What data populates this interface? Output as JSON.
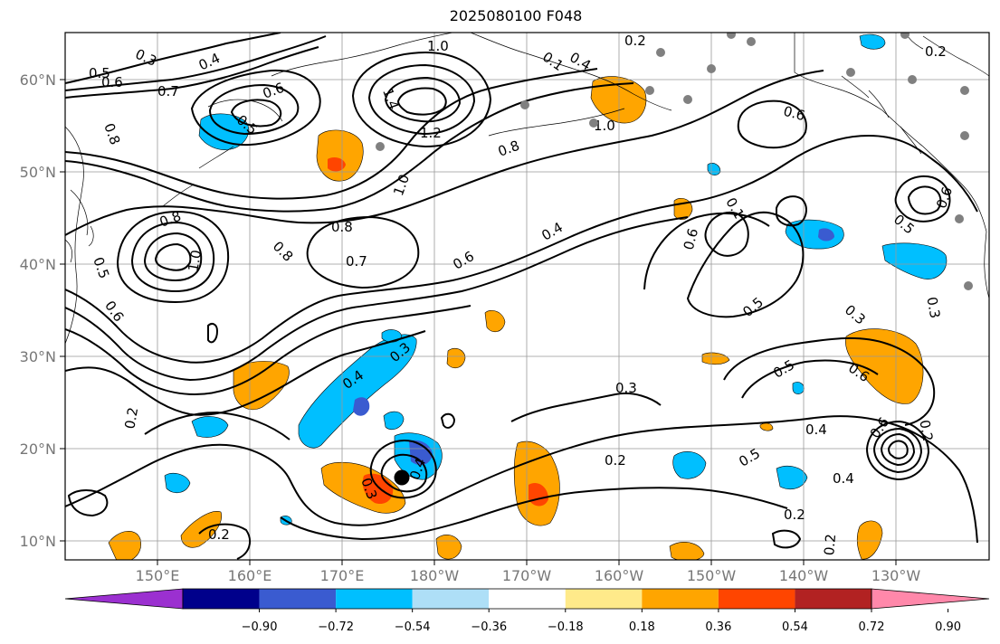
{
  "title": "2025080100 F048",
  "map": {
    "lat_labels": [
      "60°N",
      "50°N",
      "40°N",
      "30°N",
      "20°N",
      "10°N"
    ],
    "lon_labels": [
      "150°E",
      "160°E",
      "170°E",
      "180°W",
      "170°W",
      "160°W",
      "150°W",
      "140°W",
      "130°W"
    ],
    "grid": true,
    "storm_marker_lat_lon": [
      17,
      176.5
    ]
  },
  "contour_labels": [
    "0.3",
    "0.4",
    "0.5",
    "0.6",
    "0.7",
    "0.6",
    "0.5",
    "0.8",
    "1.0",
    "1.4",
    "1.2",
    "1.0",
    "0.8",
    "0.1",
    "0.2",
    "0.4",
    "1.0",
    "0.2",
    "0.6",
    "0.8",
    "1.0",
    "0.5",
    "0.6",
    "0.8",
    "0.7",
    "0.8",
    "0.4",
    "0.6",
    "0.6",
    "0.1",
    "0.5",
    "0.6",
    "0.5",
    "0.3",
    "0.5",
    "0.6",
    "0.3",
    "0.4",
    "0.3",
    "0.3",
    "0.4",
    "0.2",
    "0.2",
    "0.2",
    "0.5",
    "0.4",
    "0.4",
    "0.6",
    "0.3",
    "0.2",
    "0.2",
    "0.2"
  ],
  "colorbar": {
    "tick_labels": [
      "−0.90",
      "−0.72",
      "−0.54",
      "−0.36",
      "−0.18",
      "0.18",
      "0.36",
      "0.54",
      "0.72",
      "0.90"
    ],
    "colors": [
      "#9b30d0",
      "#00008b",
      "#3a5bd0",
      "#00bfff",
      "#aedff7",
      "#ffffff",
      "#ffea8a",
      "#ffa500",
      "#ff4500",
      "#b22222",
      "#ff88aa"
    ]
  },
  "colors": {
    "contour": "#000000",
    "coast": "#000000",
    "grid": "#999999",
    "station": "#808080"
  }
}
